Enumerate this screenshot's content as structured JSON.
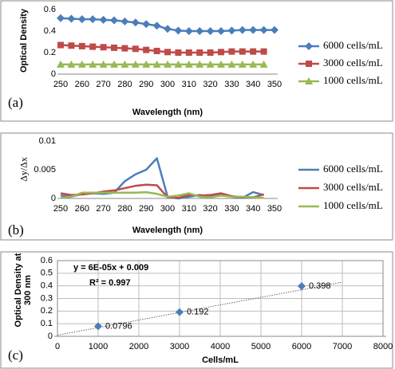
{
  "chart_data": [
    {
      "type": "line",
      "panel_label": "(a)",
      "y_label": "Optical Density",
      "x_label": "Wavelength (nm)",
      "x": [
        250,
        255,
        260,
        265,
        270,
        275,
        280,
        285,
        290,
        295,
        300,
        305,
        310,
        315,
        320,
        325,
        330,
        335,
        340,
        345,
        350
      ],
      "xlim": [
        250,
        350
      ],
      "xticks": [
        250,
        260,
        270,
        280,
        290,
        300,
        310,
        320,
        330,
        340,
        350
      ],
      "ylim": [
        0,
        0.6
      ],
      "yticks": [
        0,
        0.2,
        0.4,
        0.6
      ],
      "grid": false,
      "legend": "right",
      "series": [
        {
          "name": "6000 cells/mL",
          "color": "#4a7ebb",
          "marker": "diamond",
          "values": [
            0.52,
            0.515,
            0.51,
            0.51,
            0.505,
            0.5,
            0.49,
            0.48,
            0.465,
            0.45,
            0.42,
            0.405,
            0.4,
            0.4,
            0.4,
            0.4,
            0.405,
            0.41,
            0.41,
            0.41,
            0.41
          ]
        },
        {
          "name": "3000 cells/mL",
          "color": "#be4b48",
          "marker": "square",
          "values": [
            0.27,
            0.265,
            0.26,
            0.255,
            0.25,
            0.245,
            0.24,
            0.235,
            0.225,
            0.215,
            0.205,
            0.2,
            0.2,
            0.2,
            0.2,
            0.205,
            0.21,
            0.21,
            0.21,
            0.21,
            null
          ]
        },
        {
          "name": "1000 cells/mL",
          "color": "#98b954",
          "marker": "triangle",
          "values": [
            0.09,
            0.09,
            0.09,
            0.09,
            0.09,
            0.09,
            0.09,
            0.09,
            0.09,
            0.09,
            0.09,
            0.09,
            0.09,
            0.09,
            0.09,
            0.09,
            0.09,
            0.09,
            0.09,
            0.09,
            null
          ]
        }
      ]
    },
    {
      "type": "line",
      "panel_label": "(b)",
      "y_label": "Δy/Δx",
      "x_label": "Wavelength (nm)",
      "x": [
        250,
        255,
        260,
        265,
        270,
        275,
        280,
        285,
        290,
        295,
        300,
        305,
        310,
        315,
        320,
        325,
        330,
        335,
        340,
        345
      ],
      "xlim": [
        250,
        350
      ],
      "xticks": [
        250,
        260,
        270,
        280,
        290,
        300,
        310,
        320,
        330,
        340,
        350
      ],
      "ylim": [
        0,
        0.01
      ],
      "yticks": [
        0,
        0.005,
        0.01
      ],
      "grid": false,
      "legend": "right",
      "series": [
        {
          "name": "6000 cells/mL",
          "color": "#4a7ebb",
          "values": [
            0.0005,
            0.0003,
            0.0008,
            0.0009,
            0.0008,
            0.001,
            0.003,
            0.0042,
            0.005,
            0.007,
            0.0003,
            0,
            0.0003,
            0.0006,
            0.0004,
            0.0008,
            0.0003,
            0.0001,
            0.0011,
            0.0006
          ]
        },
        {
          "name": "3000 cells/mL",
          "color": "#be4b48",
          "values": [
            0.0009,
            0.0006,
            0.0007,
            0.0009,
            0.0012,
            0.0014,
            0.0018,
            0.0022,
            0.0024,
            0.0023,
            0.0002,
            0.0001,
            0.0006,
            0.0005,
            0.0006,
            0.0009,
            0.0004,
            0.0002,
            0.0002,
            0.0007
          ]
        },
        {
          "name": "1000 cells/mL",
          "color": "#98b954",
          "values": [
            0.0001,
            0.0003,
            0.001,
            0.001,
            0.001,
            0.001,
            0.001,
            0.001,
            0.0011,
            0.0008,
            0.0003,
            0.0005,
            0.0009,
            0.0003,
            0.0002,
            0.0005,
            0.0003,
            0.0003,
            0.0002,
            0.0001
          ]
        }
      ]
    },
    {
      "type": "scatter",
      "panel_label": "(c)",
      "y_label": "Optical Density at 300 nm",
      "x_label": "Cells/mL",
      "x": [
        1000,
        3000,
        6000
      ],
      "values": [
        0.0796,
        0.192,
        0.398
      ],
      "color": "#4a7ebb",
      "xlim": [
        0,
        8000
      ],
      "xticks": [
        0,
        1000,
        2000,
        3000,
        4000,
        5000,
        6000,
        7000,
        8000
      ],
      "ylim": [
        0,
        0.6
      ],
      "yticks": [
        0,
        0.1,
        0.2,
        0.3,
        0.4,
        0.5,
        0.6
      ],
      "grid": true,
      "annotations": [
        "y = 6E-05x + 0.009",
        "R² = 0.997"
      ],
      "trendline": {
        "slope": 6e-05,
        "intercept": 0.009,
        "xlim": [
          0,
          7000
        ]
      }
    }
  ]
}
